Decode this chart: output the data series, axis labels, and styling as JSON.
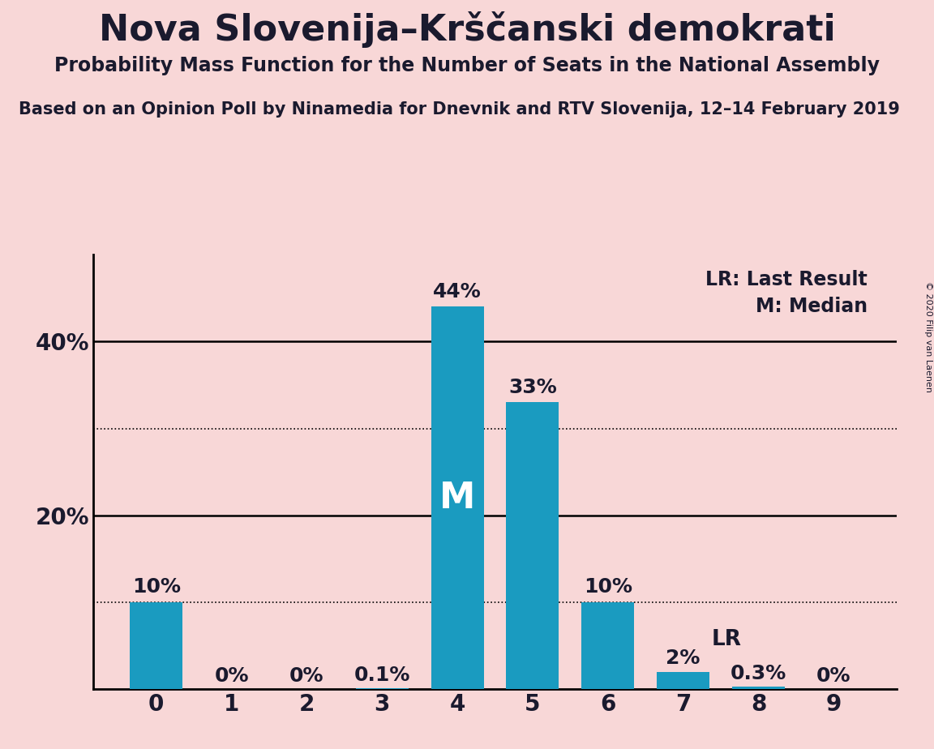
{
  "title": "Nova Slovenija–Krščanski demokrati",
  "subtitle": "Probability Mass Function for the Number of Seats in the National Assembly",
  "source_line": "Based on an Opinion Poll by Ninamedia for Dnevnik and RTV Slovenija, 12–14 February 2019",
  "copyright": "© 2020 Filip van Laenen",
  "categories": [
    0,
    1,
    2,
    3,
    4,
    5,
    6,
    7,
    8,
    9
  ],
  "values": [
    0.1,
    0.0,
    0.0,
    0.001,
    0.44,
    0.33,
    0.1,
    0.02,
    0.003,
    0.0
  ],
  "labels": [
    "10%",
    "0%",
    "0%",
    "0.1%",
    "44%",
    "33%",
    "10%",
    "2%",
    "0.3%",
    "0%"
  ],
  "bar_color": "#1a9bc0",
  "background_color": "#f8d7d7",
  "text_color": "#1a1a2e",
  "median_bar": 4,
  "lr_bar": 7,
  "lr_value": 0.02,
  "ylim": [
    0,
    0.5
  ],
  "legend_lr": "LR: Last Result",
  "legend_m": "M: Median"
}
